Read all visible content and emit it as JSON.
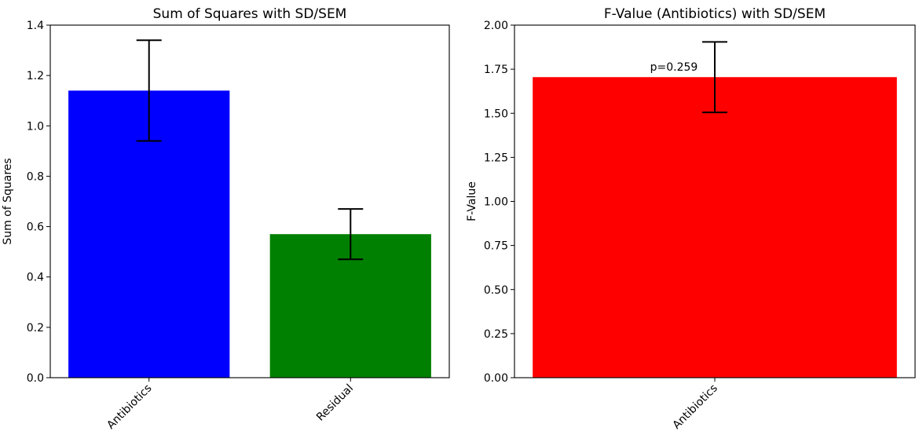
{
  "chart_data": [
    {
      "type": "bar",
      "title": "Sum of Squares with SD/SEM",
      "xlabel": "",
      "ylabel": "Sum of Squares",
      "categories": [
        "Antibiotics",
        "Residual"
      ],
      "values": [
        1.14,
        0.57
      ],
      "errors": [
        0.2,
        0.1
      ],
      "colors": [
        "#0000ff",
        "#008000"
      ],
      "ylim": [
        0,
        1.4
      ],
      "yticks": [
        0.0,
        0.2,
        0.4,
        0.6,
        0.8,
        1.0,
        1.2,
        1.4
      ],
      "ytick_labels": [
        "0.0",
        "0.2",
        "0.4",
        "0.6",
        "0.8",
        "1.0",
        "1.2",
        "1.4"
      ],
      "annotations": [],
      "grid": false
    },
    {
      "type": "bar",
      "title": "F-Value (Antibiotics) with SD/SEM",
      "xlabel": "",
      "ylabel": "F-Value",
      "categories": [
        "Antibiotics"
      ],
      "values": [
        1.705
      ],
      "errors": [
        0.2
      ],
      "colors": [
        "#ff0000"
      ],
      "ylim": [
        0,
        2.0
      ],
      "yticks": [
        0.0,
        0.25,
        0.5,
        0.75,
        1.0,
        1.25,
        1.5,
        1.75,
        2.0
      ],
      "ytick_labels": [
        "0.00",
        "0.25",
        "0.50",
        "0.75",
        "1.00",
        "1.25",
        "1.50",
        "1.75",
        "2.00"
      ],
      "annotations": [
        {
          "text": "p=0.259",
          "x": "Antibiotics",
          "y": 1.76
        }
      ],
      "grid": false
    }
  ]
}
